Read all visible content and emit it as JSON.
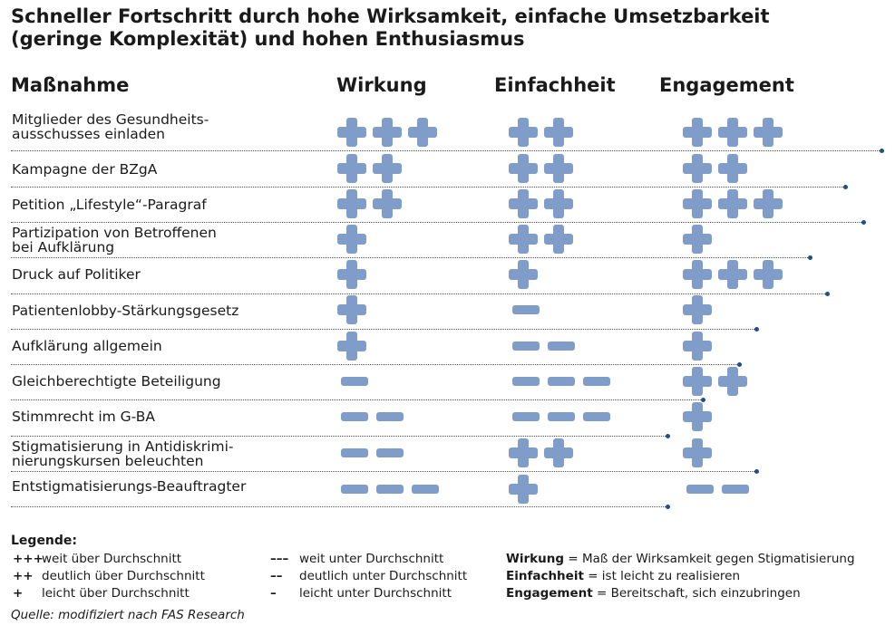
{
  "title_line1": "Schneller Fortschritt durch hohe Wirksamkeit, einfache Umsetzbarkeit",
  "title_line2": "(geringe Komplexität) und hohen Enthusiasmus",
  "colors": {
    "symbol": "#7f9dc8",
    "dot": "#1f4f86"
  },
  "chart_data": {
    "type": "table",
    "scale": "integer score from -3 (---) to +3 (+++)",
    "columns": [
      "Maßnahme",
      "Wirkung",
      "Einfachheit",
      "Engagement"
    ],
    "rows": [
      {
        "label": "Mitglieder des Gesundheits-\nausschusses einladen",
        "wirkung": 3,
        "einfachheit": 2,
        "engagement": 3
      },
      {
        "label": "Kampagne der BZgA",
        "wirkung": 2,
        "einfachheit": 2,
        "engagement": 2
      },
      {
        "label": "Petition „Lifestyle“-Paragraf",
        "wirkung": 2,
        "einfachheit": 2,
        "engagement": 3
      },
      {
        "label": "Partizipation von Betroffenen\nbei Aufklärung",
        "wirkung": 1,
        "einfachheit": 2,
        "engagement": 1
      },
      {
        "label": "Druck auf Politiker",
        "wirkung": 1,
        "einfachheit": 1,
        "engagement": 3
      },
      {
        "label": "Patientenlobby-Stärkungsgesetz",
        "wirkung": 1,
        "einfachheit": -1,
        "engagement": 1
      },
      {
        "label": "Aufklärung allgemein",
        "wirkung": 1,
        "einfachheit": -2,
        "engagement": 1
      },
      {
        "label": "Gleichberechtigte Beteiligung",
        "wirkung": -1,
        "einfachheit": -3,
        "engagement": 2
      },
      {
        "label": "Stimmrecht im G-BA",
        "wirkung": -2,
        "einfachheit": -3,
        "engagement": 1
      },
      {
        "label": "Stigmatisierung in Antidiskrimi-\nnierungskursen beleuchten",
        "wirkung": -2,
        "einfachheit": 2,
        "engagement": 1
      },
      {
        "label": "Entstigmatisierungs-Beauftragter",
        "wirkung": -3,
        "einfachheit": 1,
        "engagement": -2
      }
    ]
  },
  "legend": {
    "heading": "Legende:",
    "plus": [
      {
        "symbol": "+++",
        "text": "weit über Durchschnitt"
      },
      {
        "symbol": "++",
        "text": "deutlich über Durchschnitt"
      },
      {
        "symbol": "+",
        "text": "leicht über Durchschnitt"
      }
    ],
    "minus": [
      {
        "symbol": "–––",
        "text": "weit unter Durchschnitt"
      },
      {
        "symbol": "––",
        "text": "deutlich unter Durchschnitt"
      },
      {
        "symbol": "–",
        "text": "leicht unter Durchschnitt"
      }
    ],
    "definitions": [
      {
        "term": "Wirkung",
        "text": " = Maß der Wirksamkeit gegen Stigmatisierung"
      },
      {
        "term": "Einfachheit",
        "text": " = ist leicht zu realisieren"
      },
      {
        "term": "Engagement",
        "text": " = Bereitschaft, sich einzubringen"
      }
    ]
  },
  "source": "Quelle: modifiziert nach FAS Research"
}
